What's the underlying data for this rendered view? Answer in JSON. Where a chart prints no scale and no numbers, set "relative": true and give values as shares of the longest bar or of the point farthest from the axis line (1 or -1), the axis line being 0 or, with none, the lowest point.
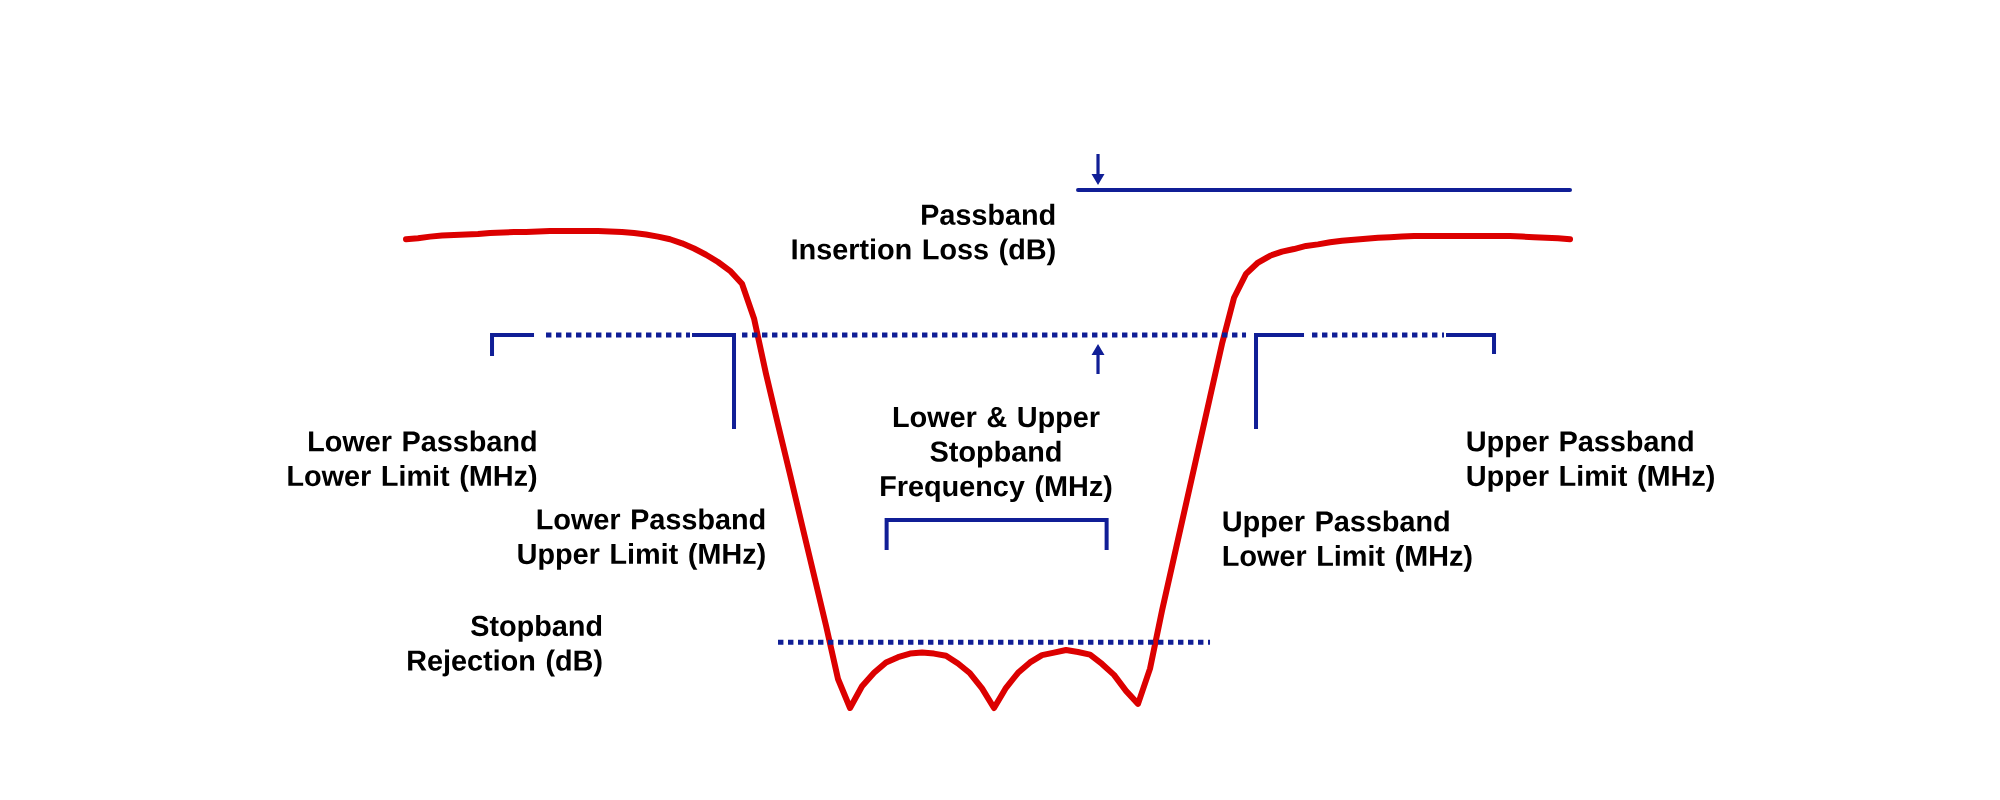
{
  "chart_data": {
    "type": "line",
    "relative": true,
    "categories": [
      null,
      null,
      null,
      null,
      null,
      null,
      null,
      null,
      null,
      null,
      null,
      null,
      null,
      null,
      null,
      null,
      null,
      null,
      null,
      null,
      null,
      null,
      null,
      null,
      null,
      null,
      null,
      null,
      null,
      null,
      null,
      null,
      null,
      null,
      null,
      null,
      null,
      null,
      null,
      null,
      null,
      null,
      null,
      null,
      null,
      null,
      null,
      null,
      null,
      null,
      null,
      null,
      null,
      null,
      null,
      null,
      null,
      null,
      null,
      null,
      null,
      null,
      null,
      null,
      null,
      null,
      null,
      null,
      null,
      null,
      null,
      null,
      null,
      null,
      null,
      null,
      null,
      null,
      null,
      null,
      null,
      null,
      null,
      null,
      null,
      null,
      null,
      null,
      null,
      null,
      null,
      null,
      null,
      null,
      null,
      null,
      null,
      null
    ],
    "series": [
      {
        "color": "#dc0000",
        "values": [
          0.905,
          0.907,
          0.91,
          0.912,
          0.913,
          0.914,
          0.915,
          0.917,
          0.918,
          0.919,
          0.919,
          0.92,
          0.921,
          0.921,
          0.921,
          0.921,
          0.921,
          0.92,
          0.919,
          0.917,
          0.914,
          0.91,
          0.905,
          0.897,
          0.887,
          0.875,
          0.861,
          0.844,
          0.819,
          0.752,
          0.645,
          0.547,
          0.451,
          0.353,
          0.256,
          0.159,
          0.056,
          0,
          0.042,
          0.068,
          0.088,
          0.098,
          0.105,
          0.107,
          0.105,
          0.101,
          0.086,
          0.067,
          0.038,
          0,
          0.039,
          0.068,
          0.088,
          0.102,
          0.107,
          0.112,
          0.108,
          0.103,
          0.085,
          0.064,
          0.033,
          0.008,
          0.076,
          0.188,
          0.291,
          0.394,
          0.497,
          0.6,
          0.703,
          0.792,
          0.838,
          0.86,
          0.873,
          0.881,
          0.886,
          0.892,
          0.895,
          0.899,
          0.902,
          0.904,
          0.906,
          0.908,
          0.909,
          0.91,
          0.911,
          0.911,
          0.911,
          0.911,
          0.911,
          0.911,
          0.911,
          0.911,
          0.911,
          0.91,
          0.909,
          0.908,
          0.907,
          0.905
        ]
      },
      {
        "color": "#101e96",
        "line_style": "dotted",
        "values": [
          null,
          null,
          null,
          null,
          null,
          null,
          null,
          null,
          null,
          null,
          null,
          null,
          null,
          null,
          null,
          null,
          null,
          null,
          null,
          null,
          null,
          null,
          null,
          null,
          null,
          null,
          null,
          null,
          0.72,
          0.72,
          0.72,
          0.72,
          0.72,
          0.72,
          0.72,
          0.72,
          0.72,
          0.72,
          0.72,
          0.72,
          0.72,
          0.72,
          0.72,
          0.72,
          0.72,
          0.72,
          0.72,
          0.72,
          0.72,
          0.72,
          0.72,
          0.72,
          0.72,
          0.72,
          0.72,
          0.72,
          0.72,
          0.72,
          0.72,
          0.72,
          0.72,
          0.72,
          0.72,
          0.72,
          0.72,
          0.72,
          0.72,
          0.72,
          0.72,
          0.72,
          0.72,
          null,
          null,
          null,
          null,
          null,
          null,
          null,
          null,
          null,
          null,
          null,
          null,
          null,
          null,
          null,
          null,
          null,
          null,
          null,
          null,
          null,
          null,
          null,
          null,
          null,
          null,
          null
        ]
      },
      {
        "color": "#101e96",
        "line_style": "dotted",
        "values": [
          null,
          null,
          null,
          null,
          null,
          null,
          null,
          null,
          null,
          null,
          null,
          null,
          null,
          null,
          null,
          null,
          null,
          null,
          null,
          null,
          null,
          null,
          null,
          null,
          null,
          null,
          null,
          null,
          null,
          null,
          null,
          0.127,
          0.127,
          0.127,
          0.127,
          0.127,
          0.127,
          0.127,
          0.127,
          0.127,
          0.127,
          0.127,
          0.127,
          0.127,
          0.127,
          0.127,
          0.127,
          0.127,
          0.127,
          0.127,
          0.127,
          0.127,
          0.127,
          0.127,
          0.127,
          0.127,
          0.127,
          0.127,
          0.127,
          0.127,
          0.127,
          0.127,
          0.127,
          0.127,
          0.127,
          0.127,
          0.127,
          0.127,
          null,
          null,
          null,
          null,
          null,
          null,
          null,
          null,
          null,
          null,
          null,
          null,
          null,
          null,
          null,
          null,
          null,
          null,
          null,
          null,
          null,
          null,
          null,
          null,
          null,
          null,
          null,
          null,
          null,
          null
        ]
      },
      {
        "color": "#101e96",
        "values": [
          null,
          null,
          null,
          null,
          null,
          null,
          null,
          null,
          null,
          null,
          null,
          null,
          null,
          null,
          null,
          null,
          null,
          null,
          null,
          null,
          null,
          null,
          null,
          null,
          null,
          null,
          null,
          null,
          null,
          null,
          null,
          null,
          null,
          null,
          null,
          null,
          null,
          null,
          null,
          null,
          null,
          null,
          null,
          null,
          null,
          null,
          null,
          null,
          null,
          null,
          null,
          null,
          null,
          null,
          null,
          null,
          1,
          1,
          1,
          1,
          1,
          1,
          1,
          1,
          1,
          1,
          1,
          1,
          1,
          1,
          1,
          1,
          1,
          1,
          1,
          1,
          1,
          1,
          1,
          1,
          1,
          1,
          1,
          1,
          1,
          1,
          1,
          1,
          1,
          1,
          1,
          1,
          1,
          1,
          1,
          1,
          1,
          1
        ]
      }
    ],
    "annotations": [
      "Passband Insertion Loss (dB)",
      "Lower Passband Lower Limit (MHz)",
      "Lower Passband Upper Limit (MHz)",
      "Upper Passband Lower Limit (MHz)",
      "Upper Passband Upper Limit (MHz)",
      "Lower & Upper Stopband Frequency (MHz)",
      "Stopband Rejection (dB)"
    ]
  }
}
